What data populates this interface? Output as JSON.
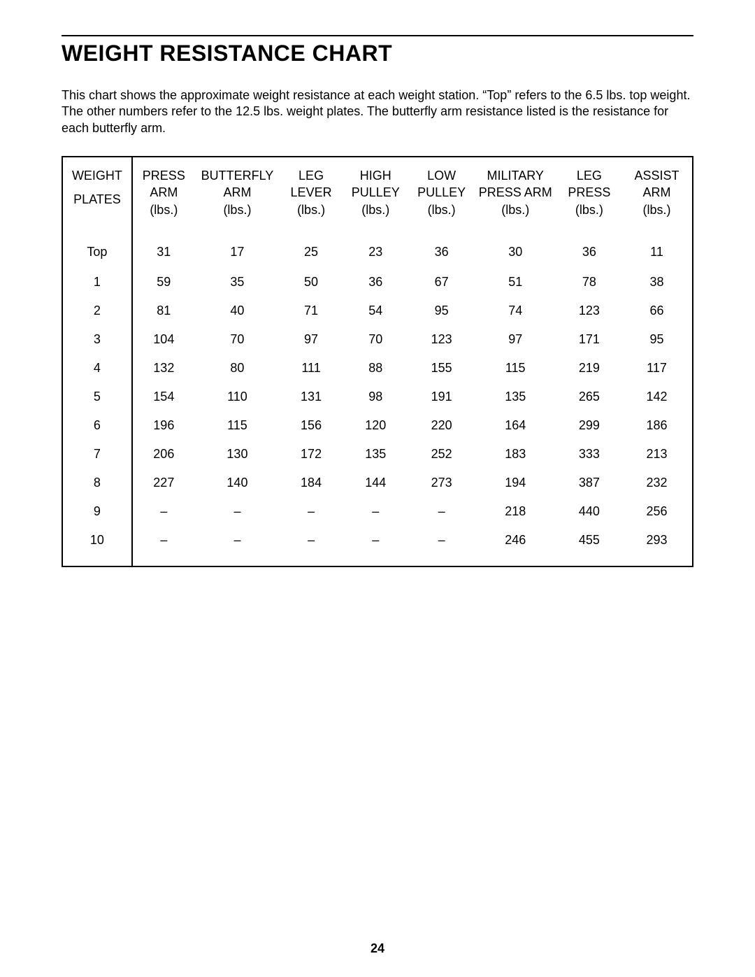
{
  "title": "WEIGHT RESISTANCE CHART",
  "intro": "This chart shows the approximate weight resistance at each weight station. “Top” refers to the 6.5 lbs. top weight. The other numbers refer to the 12.5 lbs. weight plates. The butterfly arm resistance listed is the resistance for each butterfly arm.",
  "page_number": "24",
  "table": {
    "type": "table",
    "background_color": "#ffffff",
    "border_color": "#000000",
    "font_size_pt": 13,
    "columns": [
      {
        "line1": "WEIGHT",
        "line2": "",
        "line3": "PLATES"
      },
      {
        "line1": "PRESS",
        "line2": "ARM",
        "line3": "(lbs.)"
      },
      {
        "line1": "BUTTERFLY",
        "line2": "ARM",
        "line3": "(lbs.)"
      },
      {
        "line1": "LEG",
        "line2": "LEVER",
        "line3": "(lbs.)"
      },
      {
        "line1": "HIGH",
        "line2": "PULLEY",
        "line3": "(lbs.)"
      },
      {
        "line1": "LOW",
        "line2": "PULLEY",
        "line3": "(lbs.)"
      },
      {
        "line1": "MILITARY",
        "line2": "PRESS ARM",
        "line3": "(lbs.)"
      },
      {
        "line1": "LEG",
        "line2": "PRESS",
        "line3": "(lbs.)"
      },
      {
        "line1": "ASSIST",
        "line2": "ARM",
        "line3": "(lbs.)"
      }
    ],
    "rows": [
      [
        "Top",
        "31",
        "17",
        "25",
        "23",
        "36",
        "30",
        "36",
        "11"
      ],
      [
        "1",
        "59",
        "35",
        "50",
        "36",
        "67",
        "51",
        "78",
        "38"
      ],
      [
        "2",
        "81",
        "40",
        "71",
        "54",
        "95",
        "74",
        "123",
        "66"
      ],
      [
        "3",
        "104",
        "70",
        "97",
        "70",
        "123",
        "97",
        "171",
        "95"
      ],
      [
        "4",
        "132",
        "80",
        "111",
        "88",
        "155",
        "115",
        "219",
        "117"
      ],
      [
        "5",
        "154",
        "110",
        "131",
        "98",
        "191",
        "135",
        "265",
        "142"
      ],
      [
        "6",
        "196",
        "115",
        "156",
        "120",
        "220",
        "164",
        "299",
        "186"
      ],
      [
        "7",
        "206",
        "130",
        "172",
        "135",
        "252",
        "183",
        "333",
        "213"
      ],
      [
        "8",
        "227",
        "140",
        "184",
        "144",
        "273",
        "194",
        "387",
        "232"
      ],
      [
        "9",
        "–",
        "–",
        "–",
        "–",
        "–",
        "218",
        "440",
        "256"
      ],
      [
        "10",
        "–",
        "–",
        "–",
        "–",
        "–",
        "246",
        "455",
        "293"
      ]
    ]
  }
}
